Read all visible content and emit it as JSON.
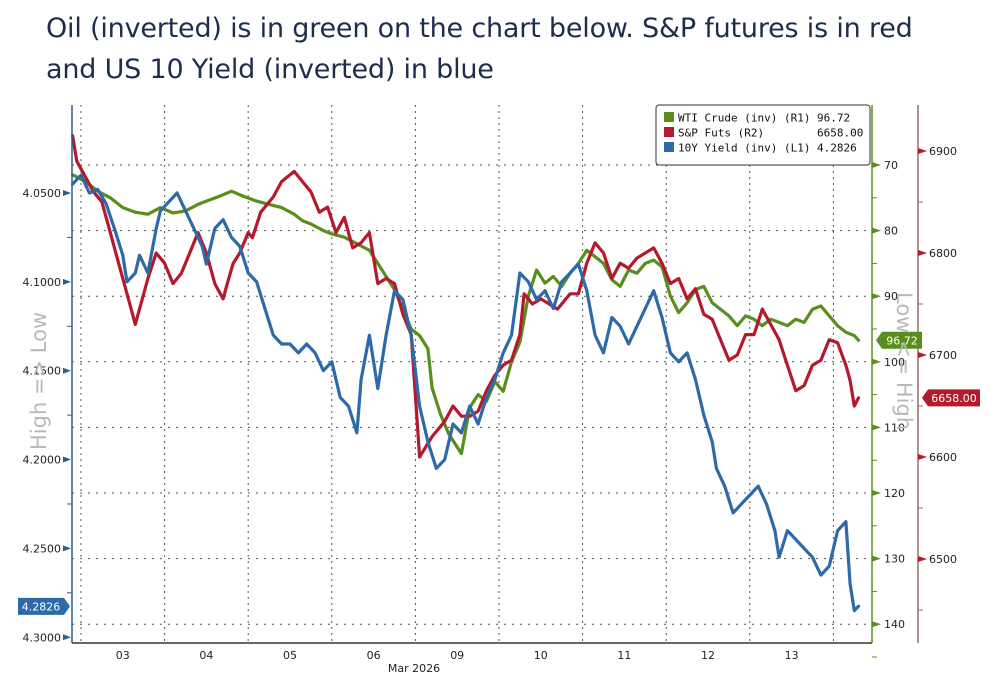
{
  "headline": {
    "line1": "Oil (inverted) is in green on the chart below. S&P futures is in red",
    "line2": "and US 10 Yield (inverted) in blue"
  },
  "chart_data": {
    "type": "line",
    "title": "",
    "xlabel": "Mar 2026",
    "x_tick_labels": [
      "03",
      "04",
      "05",
      "06",
      "09",
      "10",
      "11",
      "12",
      "13"
    ],
    "x_units": "trading-day index (0 = open of Mar 03, 1 day = 1.0)",
    "xlim": [
      -0.1,
      9.5
    ],
    "grid": true,
    "legend_position": "top-right",
    "side_labels": {
      "left": "High => Low",
      "right": "Low <= High"
    },
    "axes": {
      "L1": {
        "label": "10Y Yield (inv)",
        "inverted": true,
        "ylim": [
          4.02,
          4.3
        ],
        "ticks": [
          "4.0500",
          "4.1000",
          "4.1500",
          "4.2000",
          "4.2500",
          "4.3000"
        ],
        "tick_values": [
          4.05,
          4.1,
          4.15,
          4.2,
          4.25,
          4.3
        ]
      },
      "R1": {
        "label": "WTI Crude (inv)",
        "inverted": true,
        "ylim": [
          64.2,
          142
        ],
        "ticks": [
          "70",
          "80",
          "90",
          "100",
          "110",
          "120",
          "130",
          "140"
        ],
        "tick_values": [
          70,
          80,
          90,
          100,
          110,
          120,
          130,
          140
        ]
      },
      "R2": {
        "label": "S&P Futs",
        "inverted": false,
        "ylim": [
          6415,
          6948
        ],
        "ticks": [
          "6900",
          "6800",
          "6700",
          "6600",
          "6500"
        ],
        "tick_values": [
          6900,
          6800,
          6700,
          6600,
          6500
        ]
      }
    },
    "series": [
      {
        "name": "WTI Crude (inv) (R1)",
        "last_label": "96.72",
        "axis": "R1",
        "color": "#5a8e1c",
        "points": [
          [
            -0.1,
            71.5
          ],
          [
            0.05,
            72.5
          ],
          [
            0.2,
            74.0
          ],
          [
            0.35,
            75.0
          ],
          [
            0.5,
            76.5
          ],
          [
            0.65,
            77.2
          ],
          [
            0.8,
            77.5
          ],
          [
            0.95,
            76.5
          ],
          [
            1.1,
            77.3
          ],
          [
            1.25,
            77.0
          ],
          [
            1.4,
            76.0
          ],
          [
            1.5,
            75.5
          ],
          [
            1.65,
            74.8
          ],
          [
            1.8,
            74.0
          ],
          [
            1.95,
            74.8
          ],
          [
            2.1,
            75.5
          ],
          [
            2.25,
            76.0
          ],
          [
            2.4,
            76.5
          ],
          [
            2.55,
            77.5
          ],
          [
            2.65,
            78.5
          ],
          [
            2.75,
            79.0
          ],
          [
            2.9,
            80.0
          ],
          [
            3.0,
            80.5
          ],
          [
            3.15,
            81.0
          ],
          [
            3.3,
            82.0
          ],
          [
            3.45,
            83.0
          ],
          [
            3.6,
            86.0
          ],
          [
            3.75,
            89.0
          ],
          [
            3.85,
            92.0
          ],
          [
            3.95,
            95.0
          ],
          [
            4.05,
            96.0
          ],
          [
            4.15,
            98.0
          ],
          [
            4.2,
            104.0
          ],
          [
            4.3,
            108.0
          ],
          [
            4.4,
            111.0
          ],
          [
            4.55,
            114.0
          ],
          [
            4.65,
            107.0
          ],
          [
            4.75,
            105.0
          ],
          [
            4.85,
            106.0
          ],
          [
            4.95,
            103.0
          ],
          [
            5.05,
            104.5
          ],
          [
            5.15,
            100.0
          ],
          [
            5.25,
            97.0
          ],
          [
            5.35,
            90.0
          ],
          [
            5.45,
            86.0
          ],
          [
            5.55,
            88.0
          ],
          [
            5.65,
            87.0
          ],
          [
            5.75,
            88.5
          ],
          [
            5.85,
            86.5
          ],
          [
            5.95,
            85.0
          ],
          [
            6.05,
            83.0
          ],
          [
            6.15,
            84.0
          ],
          [
            6.25,
            85.0
          ],
          [
            6.35,
            87.5
          ],
          [
            6.45,
            88.5
          ],
          [
            6.55,
            86.0
          ],
          [
            6.65,
            86.5
          ],
          [
            6.75,
            85.0
          ],
          [
            6.85,
            84.5
          ],
          [
            6.95,
            85.5
          ],
          [
            7.05,
            90.0
          ],
          [
            7.15,
            92.5
          ],
          [
            7.25,
            91.0
          ],
          [
            7.35,
            89.0
          ],
          [
            7.45,
            88.5
          ],
          [
            7.55,
            91.0
          ],
          [
            7.65,
            92.0
          ],
          [
            7.75,
            93.0
          ],
          [
            7.85,
            94.5
          ],
          [
            7.95,
            93.0
          ],
          [
            8.05,
            93.5
          ],
          [
            8.15,
            94.5
          ],
          [
            8.25,
            93.5
          ],
          [
            8.35,
            94.0
          ],
          [
            8.45,
            94.5
          ],
          [
            8.55,
            93.5
          ],
          [
            8.65,
            94.0
          ],
          [
            8.75,
            92.0
          ],
          [
            8.85,
            91.5
          ],
          [
            8.95,
            93.0
          ],
          [
            9.05,
            94.5
          ],
          [
            9.15,
            95.5
          ],
          [
            9.25,
            96.0
          ],
          [
            9.3,
            96.72
          ]
        ]
      },
      {
        "name": "S&P Futs (R2)",
        "last_label": "6658.00",
        "axis": "R2",
        "color": "#b5192e",
        "points": [
          [
            -0.1,
            6915
          ],
          [
            -0.05,
            6890
          ],
          [
            0.05,
            6875
          ],
          [
            0.15,
            6860
          ],
          [
            0.25,
            6850
          ],
          [
            0.35,
            6820
          ],
          [
            0.45,
            6790
          ],
          [
            0.55,
            6760
          ],
          [
            0.65,
            6730
          ],
          [
            0.7,
            6745
          ],
          [
            0.8,
            6775
          ],
          [
            0.9,
            6800
          ],
          [
            1.0,
            6790
          ],
          [
            1.1,
            6770
          ],
          [
            1.2,
            6780
          ],
          [
            1.3,
            6800
          ],
          [
            1.4,
            6820
          ],
          [
            1.5,
            6800
          ],
          [
            1.6,
            6770
          ],
          [
            1.7,
            6755
          ],
          [
            1.75,
            6770
          ],
          [
            1.82,
            6790
          ],
          [
            1.9,
            6800
          ],
          [
            2.0,
            6820
          ],
          [
            2.05,
            6815
          ],
          [
            2.15,
            6840
          ],
          [
            2.3,
            6855
          ],
          [
            2.4,
            6870
          ],
          [
            2.55,
            6880
          ],
          [
            2.65,
            6870
          ],
          [
            2.75,
            6860
          ],
          [
            2.85,
            6840
          ],
          [
            2.95,
            6845
          ],
          [
            3.05,
            6820
          ],
          [
            3.15,
            6835
          ],
          [
            3.25,
            6805
          ],
          [
            3.35,
            6810
          ],
          [
            3.45,
            6820
          ],
          [
            3.55,
            6770
          ],
          [
            3.65,
            6775
          ],
          [
            3.75,
            6770
          ],
          [
            3.85,
            6740
          ],
          [
            3.95,
            6720
          ],
          [
            4.05,
            6600
          ],
          [
            4.2,
            6620
          ],
          [
            4.35,
            6635
          ],
          [
            4.45,
            6650
          ],
          [
            4.55,
            6640
          ],
          [
            4.65,
            6640
          ],
          [
            4.75,
            6645
          ],
          [
            4.85,
            6665
          ],
          [
            4.95,
            6680
          ],
          [
            5.05,
            6690
          ],
          [
            5.15,
            6695
          ],
          [
            5.25,
            6720
          ],
          [
            5.3,
            6760
          ],
          [
            5.4,
            6750
          ],
          [
            5.5,
            6755
          ],
          [
            5.6,
            6750
          ],
          [
            5.7,
            6745
          ],
          [
            5.85,
            6760
          ],
          [
            5.95,
            6760
          ],
          [
            6.05,
            6790
          ],
          [
            6.15,
            6810
          ],
          [
            6.25,
            6800
          ],
          [
            6.35,
            6775
          ],
          [
            6.45,
            6790
          ],
          [
            6.55,
            6785
          ],
          [
            6.65,
            6795
          ],
          [
            6.75,
            6800
          ],
          [
            6.85,
            6805
          ],
          [
            6.95,
            6790
          ],
          [
            7.05,
            6770
          ],
          [
            7.15,
            6775
          ],
          [
            7.25,
            6755
          ],
          [
            7.35,
            6765
          ],
          [
            7.45,
            6740
          ],
          [
            7.55,
            6735
          ],
          [
            7.65,
            6715
          ],
          [
            7.75,
            6695
          ],
          [
            7.85,
            6700
          ],
          [
            7.95,
            6720
          ],
          [
            8.05,
            6720
          ],
          [
            8.15,
            6745
          ],
          [
            8.25,
            6730
          ],
          [
            8.35,
            6715
          ],
          [
            8.45,
            6690
          ],
          [
            8.55,
            6665
          ],
          [
            8.65,
            6670
          ],
          [
            8.75,
            6690
          ],
          [
            8.85,
            6695
          ],
          [
            8.95,
            6715
          ],
          [
            9.05,
            6712
          ],
          [
            9.15,
            6690
          ],
          [
            9.2,
            6675
          ],
          [
            9.25,
            6650
          ],
          [
            9.3,
            6658
          ]
        ]
      },
      {
        "name": "10Y Yield (inv) (L1)",
        "last_label": "4.2826",
        "axis": "L1",
        "color": "#2e6aa8",
        "points": [
          [
            -0.1,
            4.045
          ],
          [
            0.0,
            4.04
          ],
          [
            0.1,
            4.05
          ],
          [
            0.2,
            4.048
          ],
          [
            0.3,
            4.056
          ],
          [
            0.4,
            4.07
          ],
          [
            0.5,
            4.085
          ],
          [
            0.55,
            4.1
          ],
          [
            0.65,
            4.095
          ],
          [
            0.7,
            4.085
          ],
          [
            0.8,
            4.095
          ],
          [
            0.9,
            4.07
          ],
          [
            0.95,
            4.06
          ],
          [
            1.05,
            4.055
          ],
          [
            1.15,
            4.05
          ],
          [
            1.25,
            4.06
          ],
          [
            1.35,
            4.07
          ],
          [
            1.45,
            4.08
          ],
          [
            1.5,
            4.09
          ],
          [
            1.6,
            4.07
          ],
          [
            1.7,
            4.065
          ],
          [
            1.8,
            4.075
          ],
          [
            1.9,
            4.08
          ],
          [
            2.0,
            4.095
          ],
          [
            2.1,
            4.1
          ],
          [
            2.2,
            4.115
          ],
          [
            2.3,
            4.13
          ],
          [
            2.4,
            4.135
          ],
          [
            2.5,
            4.135
          ],
          [
            2.6,
            4.14
          ],
          [
            2.7,
            4.135
          ],
          [
            2.8,
            4.14
          ],
          [
            2.9,
            4.15
          ],
          [
            3.0,
            4.145
          ],
          [
            3.1,
            4.165
          ],
          [
            3.2,
            4.17
          ],
          [
            3.3,
            4.185
          ],
          [
            3.35,
            4.155
          ],
          [
            3.45,
            4.13
          ],
          [
            3.55,
            4.16
          ],
          [
            3.65,
            4.13
          ],
          [
            3.75,
            4.105
          ],
          [
            3.85,
            4.11
          ],
          [
            3.95,
            4.13
          ],
          [
            4.05,
            4.17
          ],
          [
            4.15,
            4.19
          ],
          [
            4.25,
            4.205
          ],
          [
            4.35,
            4.2
          ],
          [
            4.45,
            4.18
          ],
          [
            4.55,
            4.185
          ],
          [
            4.65,
            4.17
          ],
          [
            4.75,
            4.18
          ],
          [
            4.85,
            4.165
          ],
          [
            4.95,
            4.155
          ],
          [
            5.05,
            4.14
          ],
          [
            5.15,
            4.13
          ],
          [
            5.25,
            4.095
          ],
          [
            5.35,
            4.1
          ],
          [
            5.45,
            4.11
          ],
          [
            5.55,
            4.105
          ],
          [
            5.65,
            4.115
          ],
          [
            5.75,
            4.1
          ],
          [
            5.85,
            4.095
          ],
          [
            5.95,
            4.09
          ],
          [
            6.05,
            4.105
          ],
          [
            6.15,
            4.13
          ],
          [
            6.25,
            4.14
          ],
          [
            6.35,
            4.12
          ],
          [
            6.45,
            4.125
          ],
          [
            6.55,
            4.135
          ],
          [
            6.65,
            4.125
          ],
          [
            6.75,
            4.115
          ],
          [
            6.85,
            4.105
          ],
          [
            6.95,
            4.12
          ],
          [
            7.05,
            4.14
          ],
          [
            7.15,
            4.145
          ],
          [
            7.25,
            4.14
          ],
          [
            7.35,
            4.155
          ],
          [
            7.45,
            4.175
          ],
          [
            7.55,
            4.19
          ],
          [
            7.6,
            4.205
          ],
          [
            7.7,
            4.215
          ],
          [
            7.8,
            4.23
          ],
          [
            7.9,
            4.225
          ],
          [
            8.0,
            4.22
          ],
          [
            8.1,
            4.215
          ],
          [
            8.2,
            4.225
          ],
          [
            8.3,
            4.24
          ],
          [
            8.35,
            4.255
          ],
          [
            8.45,
            4.24
          ],
          [
            8.55,
            4.245
          ],
          [
            8.65,
            4.25
          ],
          [
            8.75,
            4.255
          ],
          [
            8.85,
            4.265
          ],
          [
            8.95,
            4.26
          ],
          [
            9.05,
            4.24
          ],
          [
            9.15,
            4.235
          ],
          [
            9.2,
            4.27
          ],
          [
            9.25,
            4.285
          ],
          [
            9.3,
            4.2826
          ]
        ]
      }
    ]
  }
}
